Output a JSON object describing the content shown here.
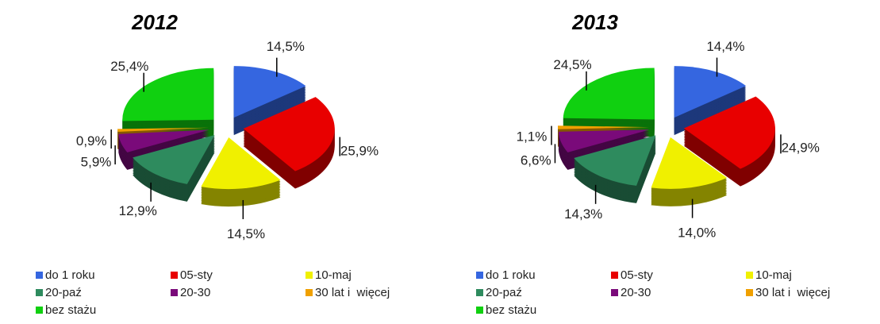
{
  "chart_data": [
    {
      "type": "pie",
      "title": "2012",
      "categories": [
        "do 1 roku",
        "05-sty",
        "10-maj",
        "20-paź",
        "20-30",
        "30 lat i  więcej",
        "bez stażu"
      ],
      "values": [
        14.5,
        25.9,
        14.5,
        12.9,
        5.9,
        0.9,
        25.4
      ],
      "value_labels": [
        "14,5%",
        "25,9%",
        "14,5%",
        "12,9%",
        "5,9%",
        "0,9%",
        "25,4%"
      ],
      "colors": [
        "#3566e0",
        "#e80000",
        "#f0f000",
        "#2e8b5e",
        "#7a0a7a",
        "#f0a000",
        "#10d010"
      ]
    },
    {
      "type": "pie",
      "title": "2013",
      "categories": [
        "do 1 roku",
        "05-sty",
        "10-maj",
        "20-paź",
        "20-30",
        "30 lat i  więcej",
        "bez stażu"
      ],
      "values": [
        14.4,
        24.9,
        14.0,
        14.3,
        6.6,
        1.1,
        24.5
      ],
      "value_labels": [
        "14,4%",
        "24,9%",
        "14,0%",
        "14,3%",
        "6,6%",
        "1,1%",
        "24,5%"
      ],
      "colors": [
        "#3566e0",
        "#e80000",
        "#f0f000",
        "#2e8b5e",
        "#7a0a7a",
        "#f0a000",
        "#10d010"
      ]
    }
  ]
}
